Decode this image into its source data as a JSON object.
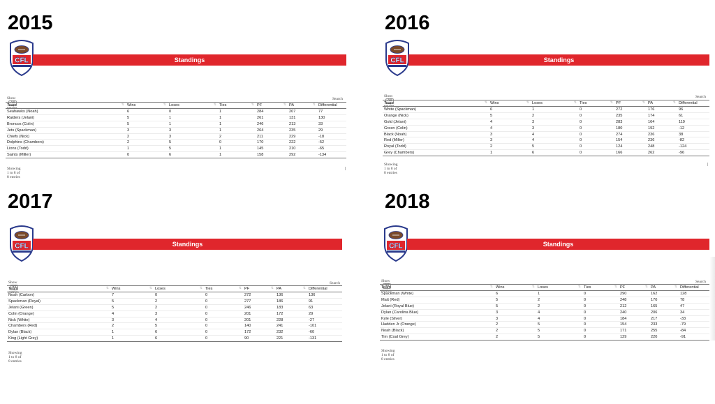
{
  "colors": {
    "banner": "#e0262c",
    "banner_text": "#ffffff"
  },
  "logo": {
    "icon": "football-league-shield-logo",
    "text": "CFL"
  },
  "controls": {
    "show": "Show",
    "entries": "entries",
    "all": "All",
    "search": "Search",
    "pager": "|"
  },
  "columns": [
    "Team",
    "Wins",
    "Loses",
    "Ties",
    "PF",
    "PA",
    "Differential"
  ],
  "panels": [
    {
      "year": "2015",
      "banner": "Standings",
      "info": "Showing 1 to 8 of 8 entries",
      "rows": [
        [
          "Seahawks (Noah)",
          "6",
          "0",
          "1",
          "284",
          "207",
          "77"
        ],
        [
          "Raiders (Jelani)",
          "5",
          "1",
          "1",
          "261",
          "131",
          "130"
        ],
        [
          "Broncos (Colin)",
          "5",
          "1",
          "1",
          "246",
          "213",
          "33"
        ],
        [
          "Jets (Spackman)",
          "3",
          "3",
          "1",
          "264",
          "235",
          "29"
        ],
        [
          "Chiefs (Nick)",
          "2",
          "3",
          "2",
          "211",
          "229",
          "-18"
        ],
        [
          "Dolphins (Chambers)",
          "2",
          "5",
          "0",
          "170",
          "222",
          "-52"
        ],
        [
          "Lions (Todd)",
          "1",
          "5",
          "1",
          "145",
          "210",
          "-65"
        ],
        [
          "Saints (Miller)",
          "0",
          "6",
          "1",
          "158",
          "292",
          "-134"
        ]
      ]
    },
    {
      "year": "2016",
      "banner": "Standings",
      "info": "Showing 1 to 8 of 8 entries",
      "rows": [
        [
          "White (Spackman)",
          "6",
          "1",
          "0",
          "272",
          "176",
          "96"
        ],
        [
          "Orange (Nick)",
          "5",
          "2",
          "0",
          "235",
          "174",
          "61"
        ],
        [
          "Gold (Jelani)",
          "4",
          "3",
          "0",
          "283",
          "164",
          "119"
        ],
        [
          "Green (Colin)",
          "4",
          "3",
          "0",
          "180",
          "192",
          "-12"
        ],
        [
          "Black (Noah)",
          "3",
          "4",
          "0",
          "274",
          "236",
          "38"
        ],
        [
          "Red (Miller)",
          "3",
          "4",
          "0",
          "154",
          "236",
          "-82"
        ],
        [
          "Royal (Todd)",
          "2",
          "5",
          "0",
          "124",
          "248",
          "-124"
        ],
        [
          "Grey (Chambers)",
          "1",
          "6",
          "0",
          "166",
          "262",
          "-96"
        ]
      ]
    },
    {
      "year": "2017",
      "banner": "Standings",
      "info": "Showing 1 to 8 of 8 entries",
      "rows": [
        [
          "Noah (Carbon)",
          "7",
          "0",
          "0",
          "272",
          "136",
          "136"
        ],
        [
          "Spackman (Royal)",
          "5",
          "2",
          "0",
          "277",
          "186",
          "91"
        ],
        [
          "Jelani (Green)",
          "5",
          "2",
          "0",
          "246",
          "183",
          "63"
        ],
        [
          "Colin (Orange)",
          "4",
          "3",
          "0",
          "201",
          "172",
          "29"
        ],
        [
          "Nick (White)",
          "3",
          "4",
          "0",
          "201",
          "228",
          "-27"
        ],
        [
          "Chambers (Red)",
          "2",
          "5",
          "0",
          "140",
          "241",
          "-101"
        ],
        [
          "Dylan (Black)",
          "1",
          "6",
          "0",
          "172",
          "232",
          "-60"
        ],
        [
          "King (Light Grey)",
          "1",
          "6",
          "0",
          "90",
          "221",
          "-131"
        ]
      ]
    },
    {
      "year": "2018",
      "banner": "Standings",
      "info": "Showing 1 to 8 of 8 entries",
      "rows": [
        [
          "Spackman (White)",
          "6",
          "1",
          "0",
          "290",
          "162",
          "128"
        ],
        [
          "Matt (Red)",
          "5",
          "2",
          "0",
          "248",
          "170",
          "78"
        ],
        [
          "Jelani (Royal Blue)",
          "5",
          "2",
          "0",
          "212",
          "165",
          "47"
        ],
        [
          "Dylan (Carolina Blue)",
          "3",
          "4",
          "0",
          "240",
          "206",
          "34"
        ],
        [
          "Kyle (Silver)",
          "3",
          "4",
          "0",
          "184",
          "217",
          "-33"
        ],
        [
          "Hadden Jr (Orange)",
          "2",
          "5",
          "0",
          "154",
          "233",
          "-79"
        ],
        [
          "Noah (Black)",
          "2",
          "5",
          "0",
          "171",
          "255",
          "-84"
        ],
        [
          "Tim (Coal Grey)",
          "2",
          "5",
          "0",
          "129",
          "220",
          "-91"
        ]
      ]
    }
  ]
}
